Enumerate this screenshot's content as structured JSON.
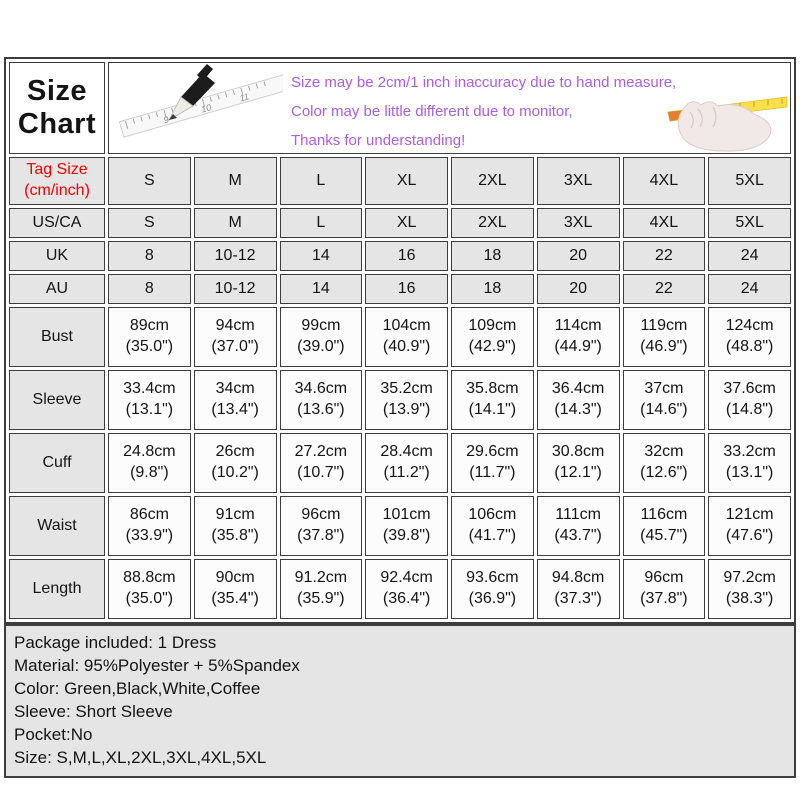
{
  "header": {
    "notes": [
      "Size may be 2cm/1 inch inaccuracy due to hand measure,",
      "Color may be little different due to monitor,",
      "Thanks for understanding!"
    ],
    "illustrations": [
      "pencil-ruler-sketch",
      "hand-holding-measuring-tape"
    ]
  },
  "chart_data": {
    "type": "table",
    "title": "Size Chart",
    "rows": [
      {
        "name": "tag-size",
        "type": "size tall",
        "label": "Tag Size\n(cm/inch)",
        "label_color": "#ee0000",
        "cells": [
          "S",
          "M",
          "L",
          "XL",
          "2XL",
          "3XL",
          "4XL",
          "5XL"
        ]
      },
      {
        "name": "us-ca",
        "type": "size",
        "label": "US/CA",
        "cells": [
          "S",
          "M",
          "L",
          "XL",
          "2XL",
          "3XL",
          "4XL",
          "5XL"
        ]
      },
      {
        "name": "uk",
        "type": "size",
        "label": "UK",
        "cells": [
          "8",
          "10-12",
          "14",
          "16",
          "18",
          "20",
          "22",
          "24"
        ]
      },
      {
        "name": "au",
        "type": "size",
        "label": "AU",
        "cells": [
          "8",
          "10-12",
          "14",
          "16",
          "18",
          "20",
          "22",
          "24"
        ]
      },
      {
        "name": "bust",
        "type": "measure",
        "label": "Bust",
        "cells": [
          "89cm\n(35.0\")",
          "94cm\n(37.0\")",
          "99cm\n(39.0\")",
          "104cm\n(40.9\")",
          "109cm\n(42.9\")",
          "114cm\n(44.9\")",
          "119cm\n(46.9\")",
          "124cm\n(48.8\")"
        ]
      },
      {
        "name": "sleeve",
        "type": "measure",
        "label": "Sleeve",
        "cells": [
          "33.4cm\n(13.1\")",
          "34cm\n(13.4\")",
          "34.6cm\n(13.6\")",
          "35.2cm\n(13.9\")",
          "35.8cm\n(14.1\")",
          "36.4cm\n(14.3\")",
          "37cm\n(14.6\")",
          "37.6cm\n(14.8\")"
        ]
      },
      {
        "name": "cuff",
        "type": "measure",
        "label": "Cuff",
        "cells": [
          "24.8cm\n(9.8\")",
          "26cm\n(10.2\")",
          "27.2cm\n(10.7\")",
          "28.4cm\n(11.2\")",
          "29.6cm\n(11.7\")",
          "30.8cm\n(12.1\")",
          "32cm\n(12.6\")",
          "33.2cm\n(13.1\")"
        ]
      },
      {
        "name": "waist",
        "type": "measure",
        "label": "Waist",
        "cells": [
          "86cm\n(33.9\")",
          "91cm\n(35.8\")",
          "96cm\n(37.8\")",
          "101cm\n(39.8\")",
          "106cm\n(41.7\")",
          "111cm\n(43.7\")",
          "116cm\n(45.7\")",
          "121cm\n(47.6\")"
        ]
      },
      {
        "name": "length",
        "type": "measure",
        "label": "Length",
        "cells": [
          "88.8cm\n(35.0\")",
          "90cm\n(35.4\")",
          "91.2cm\n(35.9\")",
          "92.4cm\n(36.4\")",
          "93.6cm\n(36.9\")",
          "94.8cm\n(37.3\")",
          "96cm\n(37.8\")",
          "97.2cm\n(38.3\")"
        ]
      }
    ]
  },
  "info": {
    "lines": [
      "Package included: 1 Dress",
      "Material: 95%Polyester + 5%Spandex",
      "Color: Green,Black,White,Coffee",
      "Sleeve: Short Sleeve",
      "Pocket:No",
      "Size: S,M,L,XL,2XL,3XL,4XL,5XL"
    ]
  },
  "colors": {
    "accent_red": "#ee0000",
    "note_purple": "#ab5fd8",
    "cell_gray": "#e5e5e5",
    "border_dark": "#3d3d3d",
    "tape_yellow": "#f8e04b"
  }
}
